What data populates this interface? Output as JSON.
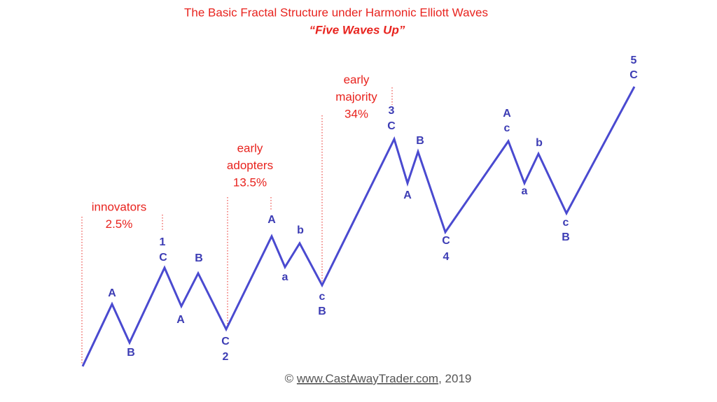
{
  "title": "The Basic Fractal Structure under Harmonic Elliott Waves",
  "subtitle": "“Five Waves Up”",
  "wave_labels": [
    "A",
    "B",
    "1",
    "C",
    "A",
    "B",
    "C",
    "2",
    "A",
    "a",
    "b",
    "c",
    "B",
    "3",
    "C",
    "A",
    "B",
    "C",
    "4",
    "A",
    "c",
    "a",
    "b",
    "c",
    "B",
    "5",
    "C"
  ],
  "groups": [
    {
      "lines": [
        "innovators",
        "2.5%"
      ]
    },
    {
      "lines": [
        "early",
        "adopters",
        "13.5%"
      ]
    },
    {
      "lines": [
        "early",
        "majority",
        "34%"
      ]
    }
  ],
  "footer": {
    "symbol": "©",
    "link": "www.CastAwayTrader.com",
    "year": ", 2019"
  }
}
